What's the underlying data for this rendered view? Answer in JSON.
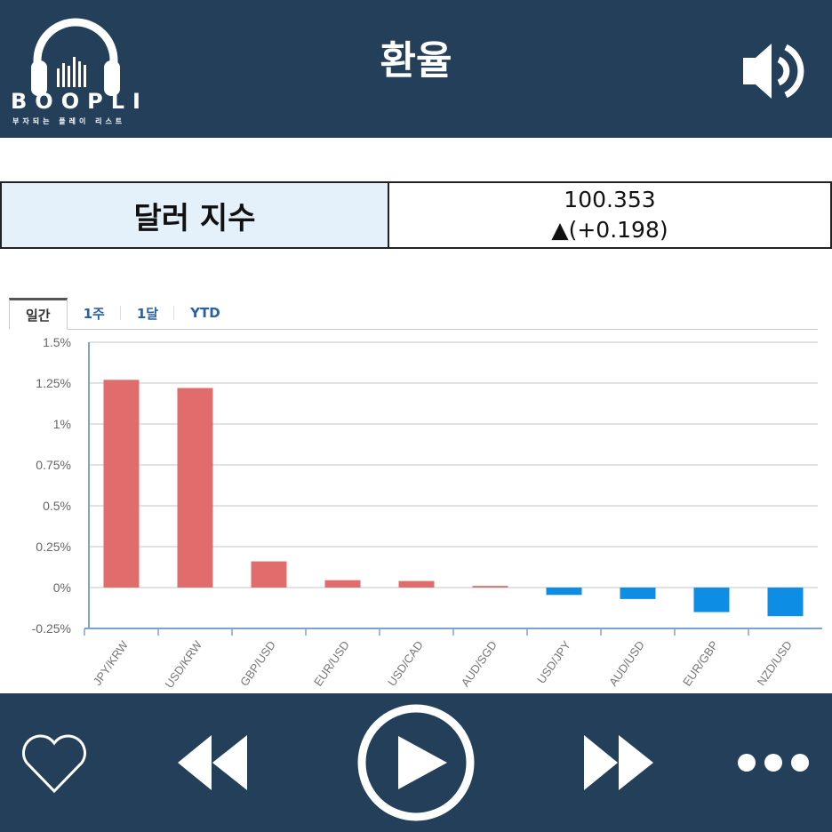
{
  "header": {
    "logo_text": "BOOPLI",
    "logo_subtitle": "부자되는 플레이 리스트",
    "title": "환율",
    "speaker_icon": "speaker-icon"
  },
  "index_box": {
    "label": "달러 지수",
    "value": "100.353",
    "change": "▲(+0.198)"
  },
  "tabs": [
    {
      "label": "일간",
      "active": true
    },
    {
      "label": "1주"
    },
    {
      "label": "1달"
    },
    {
      "label": "YTD"
    }
  ],
  "chart_data": {
    "type": "bar",
    "categories": [
      "JPY/KRW",
      "USD/KRW",
      "GBP/USD",
      "EUR/USD",
      "USD/CAD",
      "AUD/SGD",
      "USD/JPY",
      "AUD/USD",
      "EUR/GBP",
      "NZD/USD"
    ],
    "values": [
      1.27,
      1.22,
      0.16,
      0.045,
      0.04,
      0.01,
      -0.045,
      -0.07,
      -0.15,
      -0.175
    ],
    "unit": "%",
    "ylim": [
      -0.25,
      1.5
    ],
    "yticks": [
      "1.5%",
      "1.25%",
      "1%",
      "0.75%",
      "0.5%",
      "0.25%",
      "0%",
      "-0.25%"
    ],
    "ytick_values": [
      1.5,
      1.25,
      1,
      0.75,
      0.5,
      0.25,
      0,
      -0.25
    ],
    "grid": true,
    "colors": {
      "positive": "#e06c6c",
      "negative": "#0d8ee4"
    }
  },
  "footer": {
    "icons": [
      "heart-icon",
      "rewind-icon",
      "play-icon",
      "fast-forward-icon",
      "more-icon"
    ]
  },
  "colors": {
    "bar_bg": "#233f5a",
    "box_label_bg": "#e4f1fb"
  }
}
